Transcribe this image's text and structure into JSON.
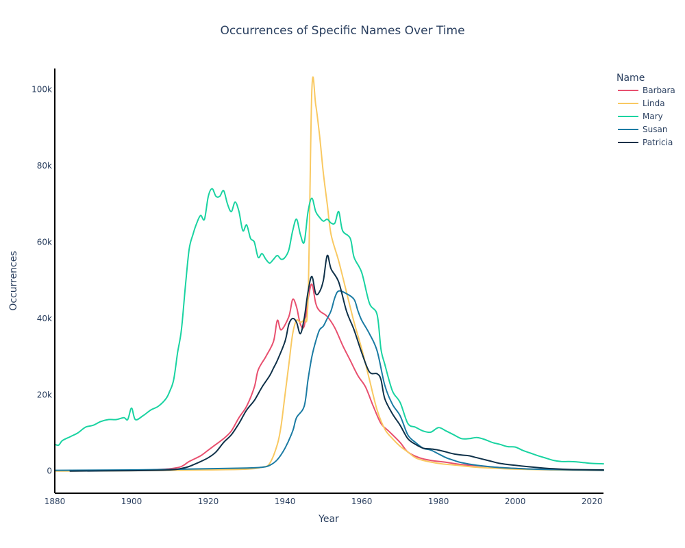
{
  "chart_data": {
    "type": "line",
    "title": "Occurrences of Specific Names Over Time",
    "xlabel": "Year",
    "ylabel": "Occurrences",
    "xlim": [
      1880,
      2023
    ],
    "ylim": [
      -5800,
      105500
    ],
    "x_ticks": [
      1880,
      1900,
      1920,
      1940,
      1960,
      1980,
      2000,
      2020
    ],
    "y_ticks": [
      0,
      20000,
      40000,
      60000,
      80000,
      100000
    ],
    "y_tick_labels": [
      "0",
      "20k",
      "40k",
      "60k",
      "80k",
      "100k"
    ],
    "grid": false,
    "legend": {
      "title": "Name",
      "position": "right"
    },
    "series": [
      {
        "name": "Barbara",
        "color": "#e8506f",
        "points": [
          [
            1880,
            100
          ],
          [
            1890,
            150
          ],
          [
            1900,
            200
          ],
          [
            1905,
            300
          ],
          [
            1910,
            600
          ],
          [
            1913,
            1200
          ],
          [
            1915,
            2500
          ],
          [
            1918,
            4000
          ],
          [
            1920,
            5500
          ],
          [
            1922,
            7000
          ],
          [
            1924,
            8500
          ],
          [
            1926,
            10500
          ],
          [
            1928,
            14000
          ],
          [
            1930,
            17000
          ],
          [
            1932,
            22000
          ],
          [
            1933,
            26500
          ],
          [
            1935,
            30000
          ],
          [
            1937,
            34000
          ],
          [
            1938,
            39500
          ],
          [
            1939,
            37000
          ],
          [
            1941,
            40500
          ],
          [
            1942,
            45000
          ],
          [
            1943,
            43000
          ],
          [
            1944,
            38500
          ],
          [
            1945,
            38000
          ],
          [
            1946,
            45000
          ],
          [
            1947,
            49000
          ],
          [
            1948,
            44000
          ],
          [
            1949,
            42000
          ],
          [
            1951,
            40500
          ],
          [
            1953,
            37500
          ],
          [
            1955,
            33000
          ],
          [
            1957,
            29000
          ],
          [
            1959,
            25000
          ],
          [
            1961,
            22000
          ],
          [
            1963,
            17000
          ],
          [
            1965,
            12500
          ],
          [
            1967,
            10500
          ],
          [
            1970,
            7500
          ],
          [
            1972,
            5000
          ],
          [
            1975,
            3500
          ],
          [
            1978,
            2800
          ],
          [
            1982,
            2300
          ],
          [
            1986,
            1700
          ],
          [
            1990,
            1400
          ],
          [
            1995,
            1000
          ],
          [
            2000,
            700
          ],
          [
            2005,
            500
          ],
          [
            2010,
            350
          ],
          [
            2015,
            250
          ],
          [
            2020,
            200
          ],
          [
            2023,
            200
          ]
        ]
      },
      {
        "name": "Linda",
        "color": "#f9c962",
        "points": [
          [
            1880,
            0
          ],
          [
            1900,
            100
          ],
          [
            1920,
            300
          ],
          [
            1930,
            500
          ],
          [
            1934,
            1000
          ],
          [
            1936,
            2000
          ],
          [
            1938,
            7000
          ],
          [
            1939,
            12000
          ],
          [
            1940,
            20000
          ],
          [
            1941,
            28000
          ],
          [
            1942,
            36000
          ],
          [
            1943,
            39500
          ],
          [
            1944,
            39000
          ],
          [
            1945,
            40000
          ],
          [
            1946,
            45000
          ],
          [
            1947,
            100000
          ],
          [
            1948,
            96000
          ],
          [
            1949,
            88000
          ],
          [
            1950,
            78000
          ],
          [
            1951,
            70000
          ],
          [
            1952,
            62000
          ],
          [
            1954,
            55000
          ],
          [
            1956,
            47000
          ],
          [
            1958,
            39000
          ],
          [
            1960,
            32000
          ],
          [
            1962,
            24000
          ],
          [
            1964,
            16000
          ],
          [
            1966,
            11000
          ],
          [
            1968,
            8500
          ],
          [
            1970,
            6500
          ],
          [
            1972,
            5000
          ],
          [
            1974,
            3500
          ],
          [
            1976,
            2800
          ],
          [
            1980,
            2000
          ],
          [
            1985,
            1500
          ],
          [
            1990,
            1000
          ],
          [
            1995,
            700
          ],
          [
            2000,
            500
          ],
          [
            2010,
            300
          ],
          [
            2023,
            150
          ]
        ]
      },
      {
        "name": "Mary",
        "color": "#19d3a1",
        "points": [
          [
            1880,
            7000
          ],
          [
            1881,
            6800
          ],
          [
            1882,
            8000
          ],
          [
            1884,
            9000
          ],
          [
            1886,
            10000
          ],
          [
            1888,
            11500
          ],
          [
            1890,
            12000
          ],
          [
            1892,
            13000
          ],
          [
            1894,
            13500
          ],
          [
            1896,
            13500
          ],
          [
            1898,
            14000
          ],
          [
            1899,
            13500
          ],
          [
            1900,
            16500
          ],
          [
            1901,
            13500
          ],
          [
            1903,
            14500
          ],
          [
            1905,
            16000
          ],
          [
            1907,
            17000
          ],
          [
            1909,
            19000
          ],
          [
            1910,
            21000
          ],
          [
            1911,
            24000
          ],
          [
            1912,
            31000
          ],
          [
            1913,
            37000
          ],
          [
            1914,
            48000
          ],
          [
            1915,
            58000
          ],
          [
            1916,
            62000
          ],
          [
            1917,
            65000
          ],
          [
            1918,
            67000
          ],
          [
            1919,
            66000
          ],
          [
            1920,
            72000
          ],
          [
            1921,
            74000
          ],
          [
            1922,
            72000
          ],
          [
            1923,
            72000
          ],
          [
            1924,
            73500
          ],
          [
            1925,
            70000
          ],
          [
            1926,
            68000
          ],
          [
            1927,
            70500
          ],
          [
            1928,
            68000
          ],
          [
            1929,
            63000
          ],
          [
            1930,
            64500
          ],
          [
            1931,
            61000
          ],
          [
            1932,
            60000
          ],
          [
            1933,
            56000
          ],
          [
            1934,
            57000
          ],
          [
            1935,
            55500
          ],
          [
            1936,
            54500
          ],
          [
            1937,
            55500
          ],
          [
            1938,
            56500
          ],
          [
            1939,
            55500
          ],
          [
            1940,
            56000
          ],
          [
            1941,
            58000
          ],
          [
            1942,
            63000
          ],
          [
            1943,
            66000
          ],
          [
            1944,
            62000
          ],
          [
            1945,
            60000
          ],
          [
            1946,
            68000
          ],
          [
            1947,
            71500
          ],
          [
            1948,
            68000
          ],
          [
            1949,
            66500
          ],
          [
            1950,
            65500
          ],
          [
            1951,
            66000
          ],
          [
            1952,
            65000
          ],
          [
            1953,
            65000
          ],
          [
            1954,
            68000
          ],
          [
            1955,
            63000
          ],
          [
            1957,
            61000
          ],
          [
            1958,
            56000
          ],
          [
            1960,
            52000
          ],
          [
            1962,
            44000
          ],
          [
            1964,
            41000
          ],
          [
            1965,
            32000
          ],
          [
            1966,
            28000
          ],
          [
            1968,
            21000
          ],
          [
            1970,
            18000
          ],
          [
            1972,
            12500
          ],
          [
            1974,
            11500
          ],
          [
            1976,
            10500
          ],
          [
            1978,
            10200
          ],
          [
            1980,
            11400
          ],
          [
            1982,
            10500
          ],
          [
            1984,
            9500
          ],
          [
            1986,
            8500
          ],
          [
            1988,
            8500
          ],
          [
            1990,
            8800
          ],
          [
            1992,
            8300
          ],
          [
            1994,
            7500
          ],
          [
            1996,
            7000
          ],
          [
            1998,
            6400
          ],
          [
            2000,
            6300
          ],
          [
            2002,
            5400
          ],
          [
            2004,
            4700
          ],
          [
            2006,
            4000
          ],
          [
            2008,
            3400
          ],
          [
            2010,
            2800
          ],
          [
            2012,
            2500
          ],
          [
            2014,
            2500
          ],
          [
            2016,
            2400
          ],
          [
            2018,
            2200
          ],
          [
            2020,
            2000
          ],
          [
            2023,
            1900
          ]
        ]
      },
      {
        "name": "Susan",
        "color": "#1b7ba3",
        "points": [
          [
            1880,
            200
          ],
          [
            1900,
            300
          ],
          [
            1920,
            600
          ],
          [
            1930,
            800
          ],
          [
            1934,
            1000
          ],
          [
            1936,
            1500
          ],
          [
            1938,
            3000
          ],
          [
            1940,
            6000
          ],
          [
            1942,
            10500
          ],
          [
            1943,
            14000
          ],
          [
            1945,
            17000
          ],
          [
            1946,
            24000
          ],
          [
            1947,
            30000
          ],
          [
            1948,
            34000
          ],
          [
            1949,
            37000
          ],
          [
            1950,
            38000
          ],
          [
            1951,
            40000
          ],
          [
            1952,
            42000
          ],
          [
            1953,
            45500
          ],
          [
            1954,
            47200
          ],
          [
            1956,
            46500
          ],
          [
            1958,
            45000
          ],
          [
            1959,
            42000
          ],
          [
            1960,
            39500
          ],
          [
            1962,
            36000
          ],
          [
            1964,
            31500
          ],
          [
            1966,
            22500
          ],
          [
            1968,
            17500
          ],
          [
            1970,
            14500
          ],
          [
            1972,
            9500
          ],
          [
            1974,
            7500
          ],
          [
            1976,
            6000
          ],
          [
            1978,
            5500
          ],
          [
            1980,
            4500
          ],
          [
            1982,
            3500
          ],
          [
            1984,
            2800
          ],
          [
            1986,
            2200
          ],
          [
            1990,
            1500
          ],
          [
            1995,
            1000
          ],
          [
            2000,
            700
          ],
          [
            2005,
            500
          ],
          [
            2010,
            400
          ],
          [
            2015,
            300
          ],
          [
            2023,
            200
          ]
        ]
      },
      {
        "name": "Patricia",
        "color": "#0f3149",
        "points": [
          [
            1884,
            0
          ],
          [
            1900,
            100
          ],
          [
            1910,
            300
          ],
          [
            1913,
            700
          ],
          [
            1915,
            1200
          ],
          [
            1918,
            2500
          ],
          [
            1920,
            3500
          ],
          [
            1922,
            5000
          ],
          [
            1924,
            7500
          ],
          [
            1926,
            9500
          ],
          [
            1928,
            12500
          ],
          [
            1930,
            16000
          ],
          [
            1932,
            18500
          ],
          [
            1934,
            22000
          ],
          [
            1936,
            25000
          ],
          [
            1937,
            27000
          ],
          [
            1938,
            29000
          ],
          [
            1940,
            34000
          ],
          [
            1941,
            38500
          ],
          [
            1942,
            40000
          ],
          [
            1943,
            39000
          ],
          [
            1944,
            36000
          ],
          [
            1945,
            40000
          ],
          [
            1946,
            47000
          ],
          [
            1947,
            51000
          ],
          [
            1948,
            46500
          ],
          [
            1949,
            47000
          ],
          [
            1950,
            50000
          ],
          [
            1951,
            56500
          ],
          [
            1952,
            53000
          ],
          [
            1954,
            49500
          ],
          [
            1956,
            42000
          ],
          [
            1958,
            37000
          ],
          [
            1960,
            31000
          ],
          [
            1962,
            26000
          ],
          [
            1964,
            25500
          ],
          [
            1965,
            24000
          ],
          [
            1966,
            19000
          ],
          [
            1968,
            15000
          ],
          [
            1970,
            12000
          ],
          [
            1972,
            8500
          ],
          [
            1974,
            7000
          ],
          [
            1976,
            6000
          ],
          [
            1978,
            5800
          ],
          [
            1980,
            5500
          ],
          [
            1982,
            5000
          ],
          [
            1984,
            4500
          ],
          [
            1986,
            4200
          ],
          [
            1988,
            4000
          ],
          [
            1990,
            3500
          ],
          [
            1992,
            3000
          ],
          [
            1994,
            2500
          ],
          [
            1996,
            2000
          ],
          [
            2000,
            1500
          ],
          [
            2005,
            1000
          ],
          [
            2010,
            600
          ],
          [
            2015,
            400
          ],
          [
            2023,
            300
          ]
        ]
      }
    ]
  }
}
